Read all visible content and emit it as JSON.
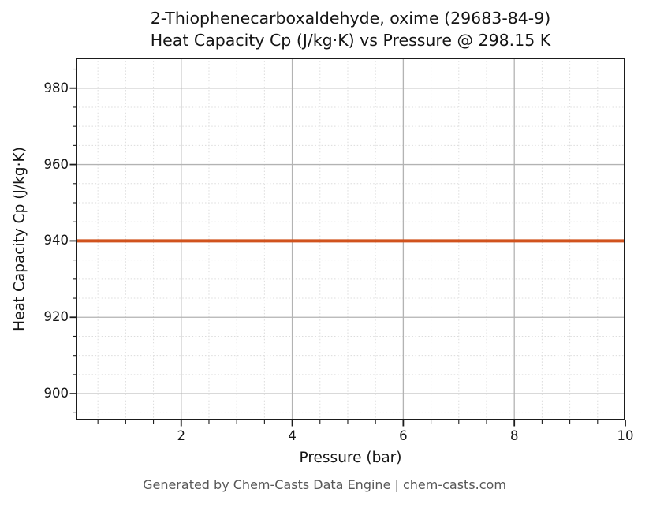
{
  "chart_data": {
    "type": "line",
    "title_line1": "2-Thiophenecarboxaldehyde, oxime (29683-84-9)",
    "title_line2": "Heat Capacity Cp (J/kg·K) vs Pressure @ 298.15 K",
    "xlabel": "Pressure (bar)",
    "ylabel": "Heat Capacity Cp (J/kg·K)",
    "footer": "Generated by Chem-Casts Data Engine | chem-casts.com",
    "xlim": [
      0.1,
      10
    ],
    "ylim": [
      893,
      988
    ],
    "xticks": [
      2,
      4,
      6,
      8,
      10
    ],
    "yticks": [
      900,
      920,
      940,
      960,
      980
    ],
    "x_minor_step": 0.5,
    "y_minor_step": 5,
    "grid": true,
    "legend_position": "none",
    "series": [
      {
        "name": "Heat Capacity Cp",
        "x": [
          0.1,
          10
        ],
        "y": [
          940,
          940
        ],
        "color": "#d1531e"
      }
    ],
    "colors": {
      "line": "#d1531e",
      "major_grid": "#b3b3b3",
      "minor_grid": "#dcdcdc",
      "spine": "#1b1b1b",
      "tick_text": "#151515",
      "footer_text": "#575757",
      "background": "#ffffff"
    }
  }
}
